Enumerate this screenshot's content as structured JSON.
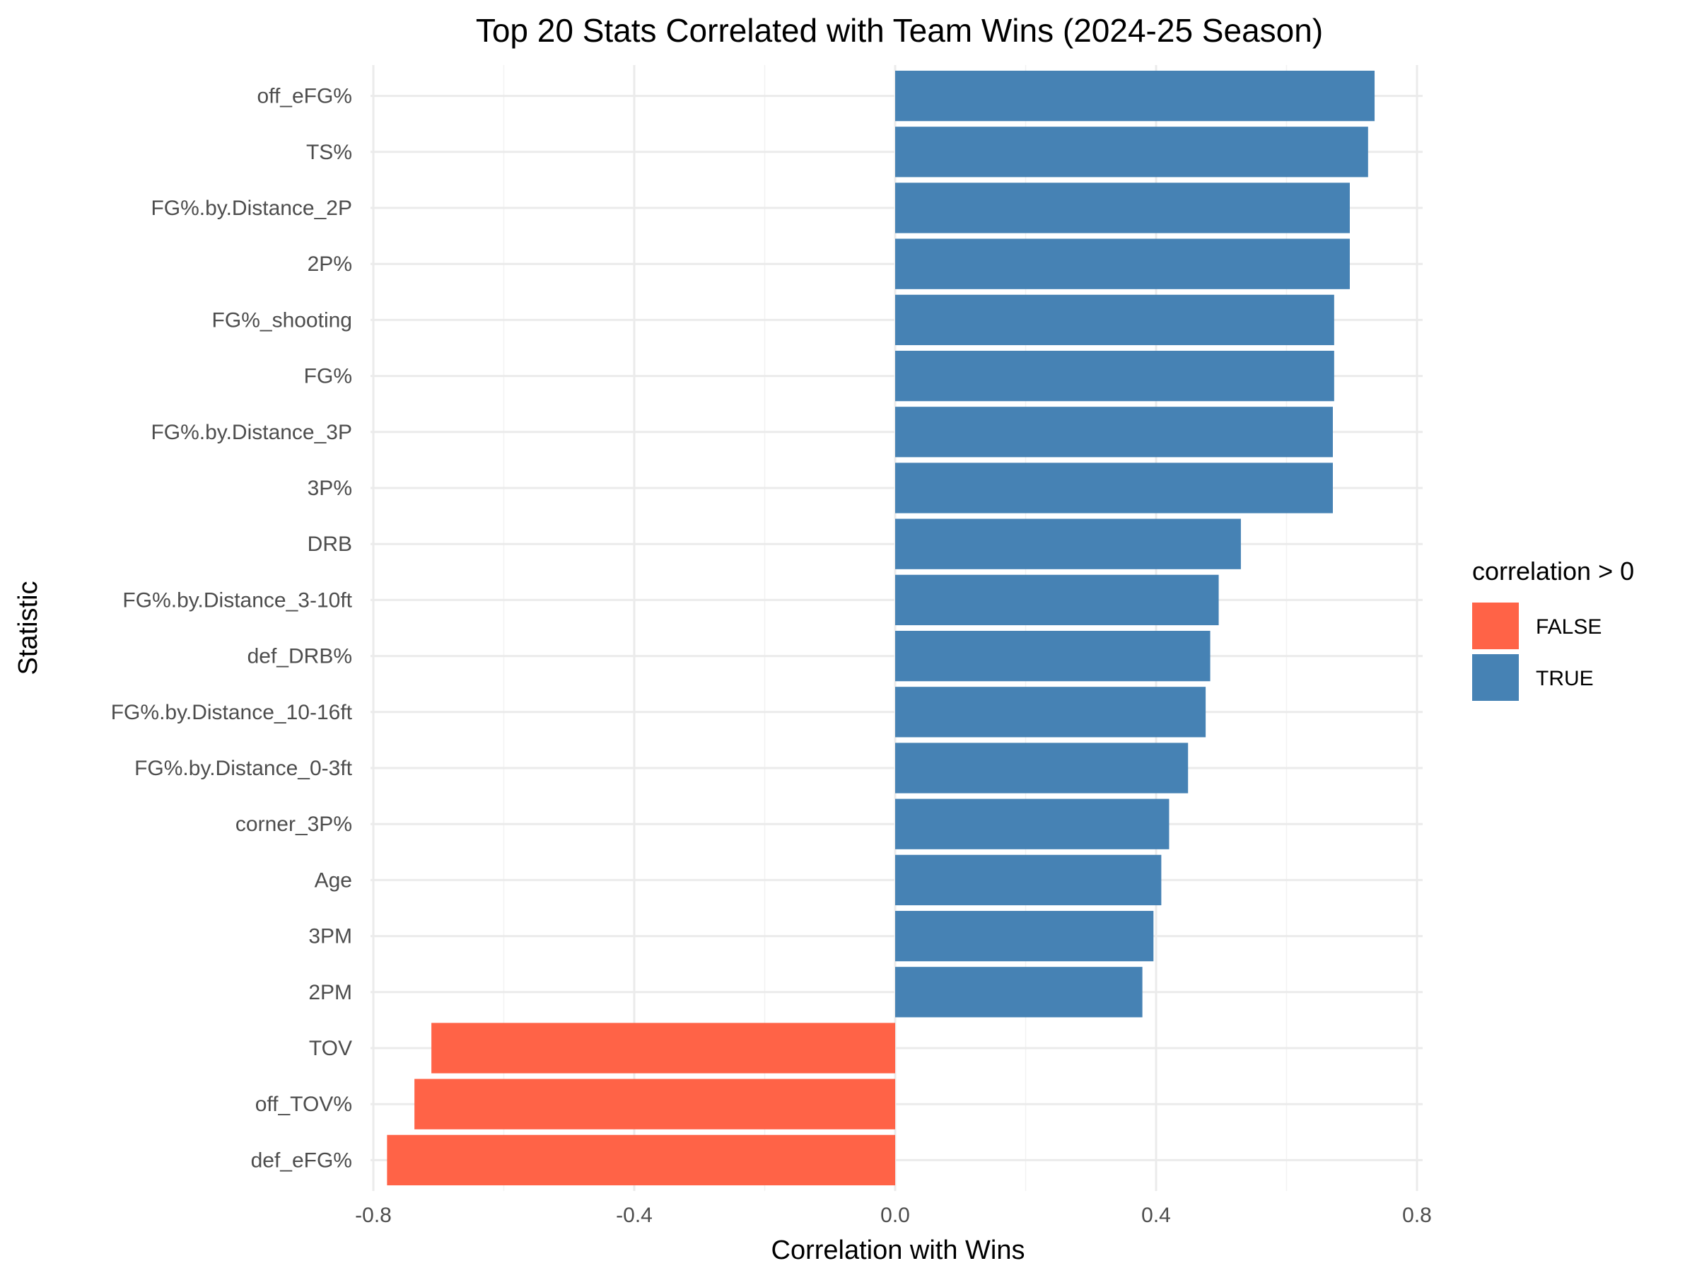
{
  "chart_data": {
    "type": "bar",
    "orientation": "horizontal",
    "title": "Top 20 Stats Correlated with Team Wins (2024-25 Season)",
    "xlabel": "Correlation with Wins",
    "ylabel": "Statistic",
    "xlim": [
      -0.8,
      0.8
    ],
    "xticks": [
      -0.8,
      -0.4,
      0.0,
      0.4,
      0.8
    ],
    "xtick_labels": [
      "-0.8",
      "-0.4",
      "0.0",
      "0.4",
      "0.8"
    ],
    "grid": true,
    "legend": {
      "title": "correlation > 0",
      "position": "right",
      "entries": [
        {
          "label": "FALSE",
          "color": "#FF6347"
        },
        {
          "label": "TRUE",
          "color": "#4682B4"
        }
      ]
    },
    "categories": [
      "off_eFG%",
      "TS%",
      "FG%.by.Distance_2P",
      "2P%",
      "FG%_shooting",
      "FG%",
      "FG%.by.Distance_3P",
      "3P%",
      "DRB",
      "FG%.by.Distance_3-10ft",
      "def_DRB%",
      "FG%.by.Distance_10-16ft",
      "FG%.by.Distance_0-3ft",
      "corner_3P%",
      "Age",
      "3PM",
      "2PM",
      "TOV",
      "off_TOV%",
      "def_eFG%"
    ],
    "values": [
      0.735,
      0.725,
      0.697,
      0.697,
      0.673,
      0.673,
      0.671,
      0.671,
      0.53,
      0.496,
      0.483,
      0.476,
      0.449,
      0.42,
      0.408,
      0.396,
      0.379,
      -0.711,
      -0.737,
      -0.779
    ]
  }
}
